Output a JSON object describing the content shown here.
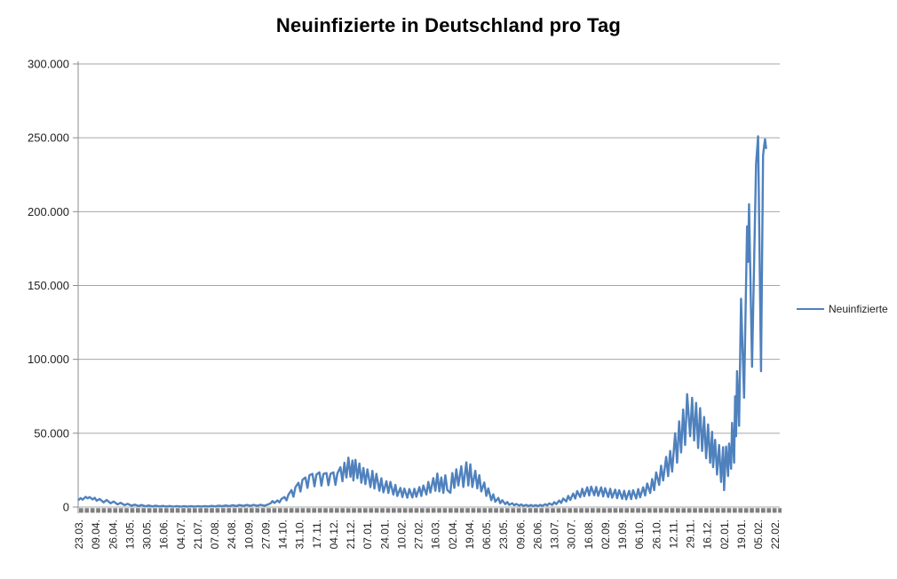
{
  "window": {
    "background": "#FFFFFF"
  },
  "title": {
    "text": "Neuinfizierte in Deutschland pro Tag"
  },
  "legend": {
    "label": "Neuinfizierte"
  },
  "colors": {
    "series_line": "#4F81BD",
    "gridline": "#A6A6A6",
    "axis_line": "#8C8C8C",
    "zero_dash_bar": "#7F7F7F",
    "title_text": "#000000",
    "axis_text": "#1F1F1F"
  },
  "chart_data": {
    "type": "line",
    "title": "Neuinfizierte in Deutschland pro Tag",
    "legend_entries": [
      "Neuinfizierte"
    ],
    "legend_position": "right",
    "grid": true,
    "y_axis": {
      "min": 0,
      "max": 300000,
      "tick_interval": 50000,
      "tick_values": [
        0,
        50000,
        100000,
        150000,
        200000,
        250000,
        300000
      ],
      "tick_labels": [
        "0",
        "50.000",
        "100.000",
        "150.000",
        "200.000",
        "250.000",
        "300.000"
      ]
    },
    "x_axis": {
      "tick_labels": [
        "23.03.",
        "09.04.",
        "26.04.",
        "13.05.",
        "30.05.",
        "16.06.",
        "04.07.",
        "21.07.",
        "07.08.",
        "24.08.",
        "10.09.",
        "27.09.",
        "14.10.",
        "31.10.",
        "17.11.",
        "04.12.",
        "21.12.",
        "07.01.",
        "24.01.",
        "10.02.",
        "27.02.",
        "16.03.",
        "02.04.",
        "19.04.",
        "06.05.",
        "23.05.",
        "09.06.",
        "26.06.",
        "13.07.",
        "30.07.",
        "16.08.",
        "02.09.",
        "19.09.",
        "06.10.",
        "26.10.",
        "12.11.",
        "29.11.",
        "16.12.",
        "02.01.",
        "19.01.",
        "05.02.",
        "22.02."
      ],
      "tick_interval_categories": 17,
      "axis_total_days": 704,
      "labels_rotated_degrees": -90
    },
    "zero_baseline_marker": {
      "value": 0,
      "style": "thick-dashed",
      "color": "#7F7F7F"
    },
    "series": [
      {
        "name": "Neuinfizierte",
        "color": "#4F81BD",
        "points": [
          [
            0,
            4900
          ],
          [
            2,
            6100
          ],
          [
            4,
            5000
          ],
          [
            7,
            6900
          ],
          [
            9,
            5900
          ],
          [
            11,
            6800
          ],
          [
            14,
            5200
          ],
          [
            16,
            6300
          ],
          [
            18,
            4300
          ],
          [
            21,
            5500
          ],
          [
            25,
            3200
          ],
          [
            28,
            4800
          ],
          [
            32,
            2500
          ],
          [
            35,
            3800
          ],
          [
            39,
            1800
          ],
          [
            42,
            2900
          ],
          [
            46,
            1300
          ],
          [
            49,
            2200
          ],
          [
            53,
            900
          ],
          [
            56,
            1700
          ],
          [
            60,
            700
          ],
          [
            63,
            1400
          ],
          [
            67,
            550
          ],
          [
            70,
            1100
          ],
          [
            74,
            450
          ],
          [
            77,
            950
          ],
          [
            81,
            400
          ],
          [
            84,
            800
          ],
          [
            88,
            350
          ],
          [
            91,
            700
          ],
          [
            95,
            300
          ],
          [
            98,
            650
          ],
          [
            102,
            280
          ],
          [
            105,
            600
          ],
          [
            109,
            300
          ],
          [
            112,
            580
          ],
          [
            116,
            320
          ],
          [
            119,
            630
          ],
          [
            123,
            350
          ],
          [
            126,
            680
          ],
          [
            130,
            400
          ],
          [
            133,
            800
          ],
          [
            137,
            500
          ],
          [
            140,
            950
          ],
          [
            144,
            600
          ],
          [
            147,
            1100
          ],
          [
            151,
            680
          ],
          [
            154,
            1250
          ],
          [
            158,
            750
          ],
          [
            161,
            1400
          ],
          [
            165,
            800
          ],
          [
            168,
            1450
          ],
          [
            172,
            820
          ],
          [
            175,
            1500
          ],
          [
            179,
            850
          ],
          [
            182,
            1550
          ],
          [
            186,
            900
          ],
          [
            189,
            1650
          ],
          [
            192,
            2500
          ],
          [
            194,
            4000
          ],
          [
            196,
            2800
          ],
          [
            199,
            4500
          ],
          [
            201,
            3200
          ],
          [
            203,
            5500
          ],
          [
            206,
            6800
          ],
          [
            208,
            4500
          ],
          [
            210,
            8500
          ],
          [
            213,
            11500
          ],
          [
            215,
            7000
          ],
          [
            217,
            13500
          ],
          [
            220,
            16500
          ],
          [
            222,
            10500
          ],
          [
            224,
            18500
          ],
          [
            227,
            20000
          ],
          [
            229,
            13000
          ],
          [
            231,
            21500
          ],
          [
            234,
            22500
          ],
          [
            236,
            14000
          ],
          [
            238,
            22000
          ],
          [
            241,
            23500
          ],
          [
            243,
            14500
          ],
          [
            245,
            22500
          ],
          [
            248,
            23000
          ],
          [
            250,
            14800
          ],
          [
            252,
            22500
          ],
          [
            255,
            23500
          ],
          [
            257,
            15000
          ],
          [
            259,
            22800
          ],
          [
            262,
            27000
          ],
          [
            264,
            17500
          ],
          [
            266,
            30000
          ],
          [
            268,
            20000
          ],
          [
            270,
            33500
          ],
          [
            272,
            20500
          ],
          [
            274,
            31500
          ],
          [
            275,
            18000
          ],
          [
            277,
            32000
          ],
          [
            279,
            19500
          ],
          [
            281,
            29500
          ],
          [
            283,
            16500
          ],
          [
            285,
            26500
          ],
          [
            287,
            15500
          ],
          [
            289,
            25500
          ],
          [
            292,
            13500
          ],
          [
            294,
            24500
          ],
          [
            296,
            12500
          ],
          [
            298,
            22500
          ],
          [
            301,
            11000
          ],
          [
            303,
            19500
          ],
          [
            305,
            10000
          ],
          [
            308,
            17500
          ],
          [
            310,
            9500
          ],
          [
            312,
            17000
          ],
          [
            315,
            8500
          ],
          [
            317,
            15000
          ],
          [
            319,
            7500
          ],
          [
            322,
            13000
          ],
          [
            324,
            6800
          ],
          [
            326,
            12500
          ],
          [
            329,
            6300
          ],
          [
            331,
            12200
          ],
          [
            334,
            6500
          ],
          [
            336,
            12400
          ],
          [
            338,
            7000
          ],
          [
            341,
            13500
          ],
          [
            343,
            7500
          ],
          [
            345,
            14600
          ],
          [
            348,
            8500
          ],
          [
            350,
            17000
          ],
          [
            352,
            9800
          ],
          [
            355,
            19600
          ],
          [
            357,
            11000
          ],
          [
            359,
            22700
          ],
          [
            361,
            10600
          ],
          [
            363,
            20000
          ],
          [
            365,
            9600
          ],
          [
            367,
            21500
          ],
          [
            369,
            11500
          ],
          [
            372,
            9600
          ],
          [
            374,
            23000
          ],
          [
            376,
            13000
          ],
          [
            378,
            25600
          ],
          [
            380,
            14600
          ],
          [
            383,
            27600
          ],
          [
            385,
            13600
          ],
          [
            388,
            30300
          ],
          [
            390,
            14600
          ],
          [
            392,
            29000
          ],
          [
            394,
            13600
          ],
          [
            397,
            24600
          ],
          [
            399,
            12600
          ],
          [
            401,
            21600
          ],
          [
            403,
            10600
          ],
          [
            406,
            16600
          ],
          [
            408,
            7600
          ],
          [
            410,
            12600
          ],
          [
            413,
            4600
          ],
          [
            415,
            8600
          ],
          [
            417,
            3600
          ],
          [
            420,
            6200
          ],
          [
            422,
            2600
          ],
          [
            424,
            4600
          ],
          [
            427,
            2000
          ],
          [
            429,
            3400
          ],
          [
            431,
            1500
          ],
          [
            434,
            2600
          ],
          [
            436,
            1200
          ],
          [
            438,
            2100
          ],
          [
            441,
            1000
          ],
          [
            443,
            1800
          ],
          [
            445,
            800
          ],
          [
            448,
            1500
          ],
          [
            450,
            700
          ],
          [
            453,
            1400
          ],
          [
            455,
            650
          ],
          [
            457,
            1300
          ],
          [
            460,
            700
          ],
          [
            462,
            1500
          ],
          [
            464,
            800
          ],
          [
            467,
            1900
          ],
          [
            469,
            1100
          ],
          [
            471,
            2500
          ],
          [
            474,
            1500
          ],
          [
            476,
            3300
          ],
          [
            478,
            2000
          ],
          [
            481,
            4400
          ],
          [
            483,
            2800
          ],
          [
            485,
            5800
          ],
          [
            488,
            3800
          ],
          [
            490,
            7600
          ],
          [
            492,
            4800
          ],
          [
            495,
            9200
          ],
          [
            497,
            5800
          ],
          [
            499,
            10800
          ],
          [
            502,
            6800
          ],
          [
            504,
            12400
          ],
          [
            506,
            7400
          ],
          [
            509,
            13400
          ],
          [
            511,
            7800
          ],
          [
            513,
            13800
          ],
          [
            516,
            8000
          ],
          [
            518,
            13600
          ],
          [
            520,
            7600
          ],
          [
            523,
            13400
          ],
          [
            525,
            7200
          ],
          [
            527,
            12800
          ],
          [
            530,
            6800
          ],
          [
            532,
            12400
          ],
          [
            534,
            6400
          ],
          [
            537,
            11800
          ],
          [
            539,
            6000
          ],
          [
            541,
            11400
          ],
          [
            544,
            5600
          ],
          [
            546,
            11000
          ],
          [
            548,
            5200
          ],
          [
            551,
            11000
          ],
          [
            553,
            5400
          ],
          [
            555,
            11400
          ],
          [
            558,
            5800
          ],
          [
            560,
            12200
          ],
          [
            562,
            6600
          ],
          [
            565,
            13400
          ],
          [
            567,
            7800
          ],
          [
            569,
            16000
          ],
          [
            572,
            9500
          ],
          [
            574,
            19000
          ],
          [
            576,
            11500
          ],
          [
            578,
            23500
          ],
          [
            581,
            15000
          ],
          [
            583,
            28000
          ],
          [
            585,
            18000
          ],
          [
            588,
            34000
          ],
          [
            590,
            21000
          ],
          [
            592,
            38000
          ],
          [
            594,
            24000
          ],
          [
            597,
            50000
          ],
          [
            599,
            30000
          ],
          [
            601,
            58000
          ],
          [
            603,
            37000
          ],
          [
            605,
            66000
          ],
          [
            607,
            42000
          ],
          [
            609,
            76500
          ],
          [
            612,
            48000
          ],
          [
            614,
            74000
          ],
          [
            616,
            45000
          ],
          [
            618,
            70500
          ],
          [
            620,
            40000
          ],
          [
            622,
            67000
          ],
          [
            624,
            38000
          ],
          [
            626,
            61000
          ],
          [
            628,
            33000
          ],
          [
            630,
            56000
          ],
          [
            632,
            30000
          ],
          [
            634,
            51000
          ],
          [
            635,
            27000
          ],
          [
            637,
            45500
          ],
          [
            639,
            22000
          ],
          [
            641,
            42000
          ],
          [
            643,
            17000
          ],
          [
            645,
            40500
          ],
          [
            646,
            11500
          ],
          [
            648,
            41000
          ],
          [
            650,
            21000
          ],
          [
            651,
            43000
          ],
          [
            653,
            26000
          ],
          [
            654,
            57000
          ],
          [
            656,
            30000
          ],
          [
            657,
            75000
          ],
          [
            658,
            48000
          ],
          [
            659,
            92000
          ],
          [
            661,
            55000
          ],
          [
            663,
            141000
          ],
          [
            666,
            74000
          ],
          [
            669,
            190000
          ],
          [
            670,
            166000
          ],
          [
            671,
            205000
          ],
          [
            674,
            95000
          ],
          [
            678,
            232000
          ],
          [
            680,
            251000
          ],
          [
            683,
            92000
          ],
          [
            685,
            238000
          ],
          [
            686,
            244000
          ],
          [
            687,
            249000
          ],
          [
            688,
            243000
          ]
        ]
      }
    ]
  }
}
